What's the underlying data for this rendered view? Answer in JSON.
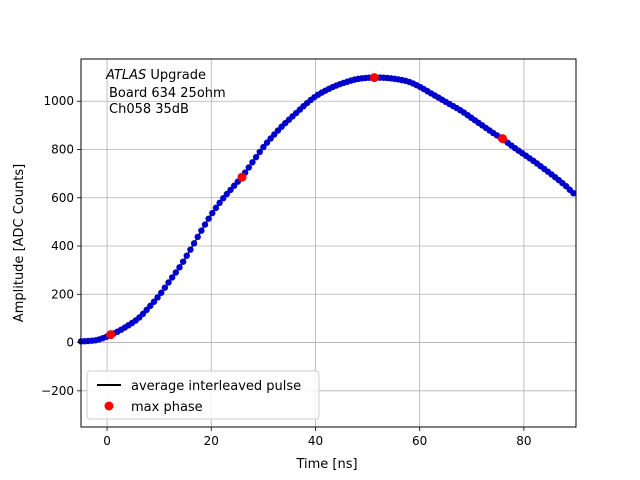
{
  "chart_data": {
    "type": "scatter",
    "xlabel": "Time [ns]",
    "ylabel": "Amplitude [ADC Counts]",
    "xlim": [
      -5,
      90
    ],
    "ylim": [
      -350,
      1175
    ],
    "xticks": [
      0,
      20,
      40,
      60,
      80
    ],
    "yticks": [
      -200,
      0,
      200,
      400,
      600,
      800,
      1000
    ],
    "grid": true,
    "annotation": {
      "italic": "ATLAS",
      "rest": " Upgrade",
      "line2": "Board 634 25ohm",
      "line3": "Ch058 35dB",
      "position": "top-left"
    },
    "legend": {
      "position": "lower-left",
      "entries": [
        {
          "label": "average interleaved pulse",
          "marker": "line",
          "color": "#000000"
        },
        {
          "label": "max phase",
          "marker": "dot",
          "color": "#ff0000"
        }
      ]
    },
    "pulse": {
      "color": "#0000cc",
      "line_color": "#000000",
      "x_start": -5,
      "x_end": 90,
      "x_step": 0.7,
      "curve": [
        [
          -5,
          5
        ],
        [
          -2,
          10
        ],
        [
          0,
          25
        ],
        [
          2,
          45
        ],
        [
          4,
          70
        ],
        [
          6,
          100
        ],
        [
          8,
          145
        ],
        [
          10,
          195
        ],
        [
          12,
          255
        ],
        [
          14,
          315
        ],
        [
          16,
          385
        ],
        [
          18,
          460
        ],
        [
          20,
          530
        ],
        [
          22,
          590
        ],
        [
          24,
          640
        ],
        [
          26,
          690
        ],
        [
          28,
          750
        ],
        [
          30,
          810
        ],
        [
          32,
          860
        ],
        [
          34,
          905
        ],
        [
          36,
          945
        ],
        [
          38,
          985
        ],
        [
          40,
          1020
        ],
        [
          42,
          1045
        ],
        [
          44,
          1065
        ],
        [
          46,
          1080
        ],
        [
          48,
          1092
        ],
        [
          50,
          1097
        ],
        [
          52,
          1098
        ],
        [
          54,
          1096
        ],
        [
          56,
          1090
        ],
        [
          58,
          1080
        ],
        [
          60,
          1060
        ],
        [
          62,
          1035
        ],
        [
          64,
          1010
        ],
        [
          66,
          985
        ],
        [
          68,
          960
        ],
        [
          70,
          930
        ],
        [
          72,
          900
        ],
        [
          74,
          870
        ],
        [
          76,
          842
        ],
        [
          78,
          810
        ],
        [
          80,
          780
        ],
        [
          82,
          750
        ],
        [
          84,
          718
        ],
        [
          86,
          685
        ],
        [
          88,
          650
        ],
        [
          90,
          612
        ]
      ]
    },
    "max_phase": {
      "color": "#ff0000",
      "points": [
        [
          0.7,
          33
        ],
        [
          25.9,
          685
        ],
        [
          51.3,
          1098
        ],
        [
          75.9,
          845
        ]
      ]
    }
  }
}
